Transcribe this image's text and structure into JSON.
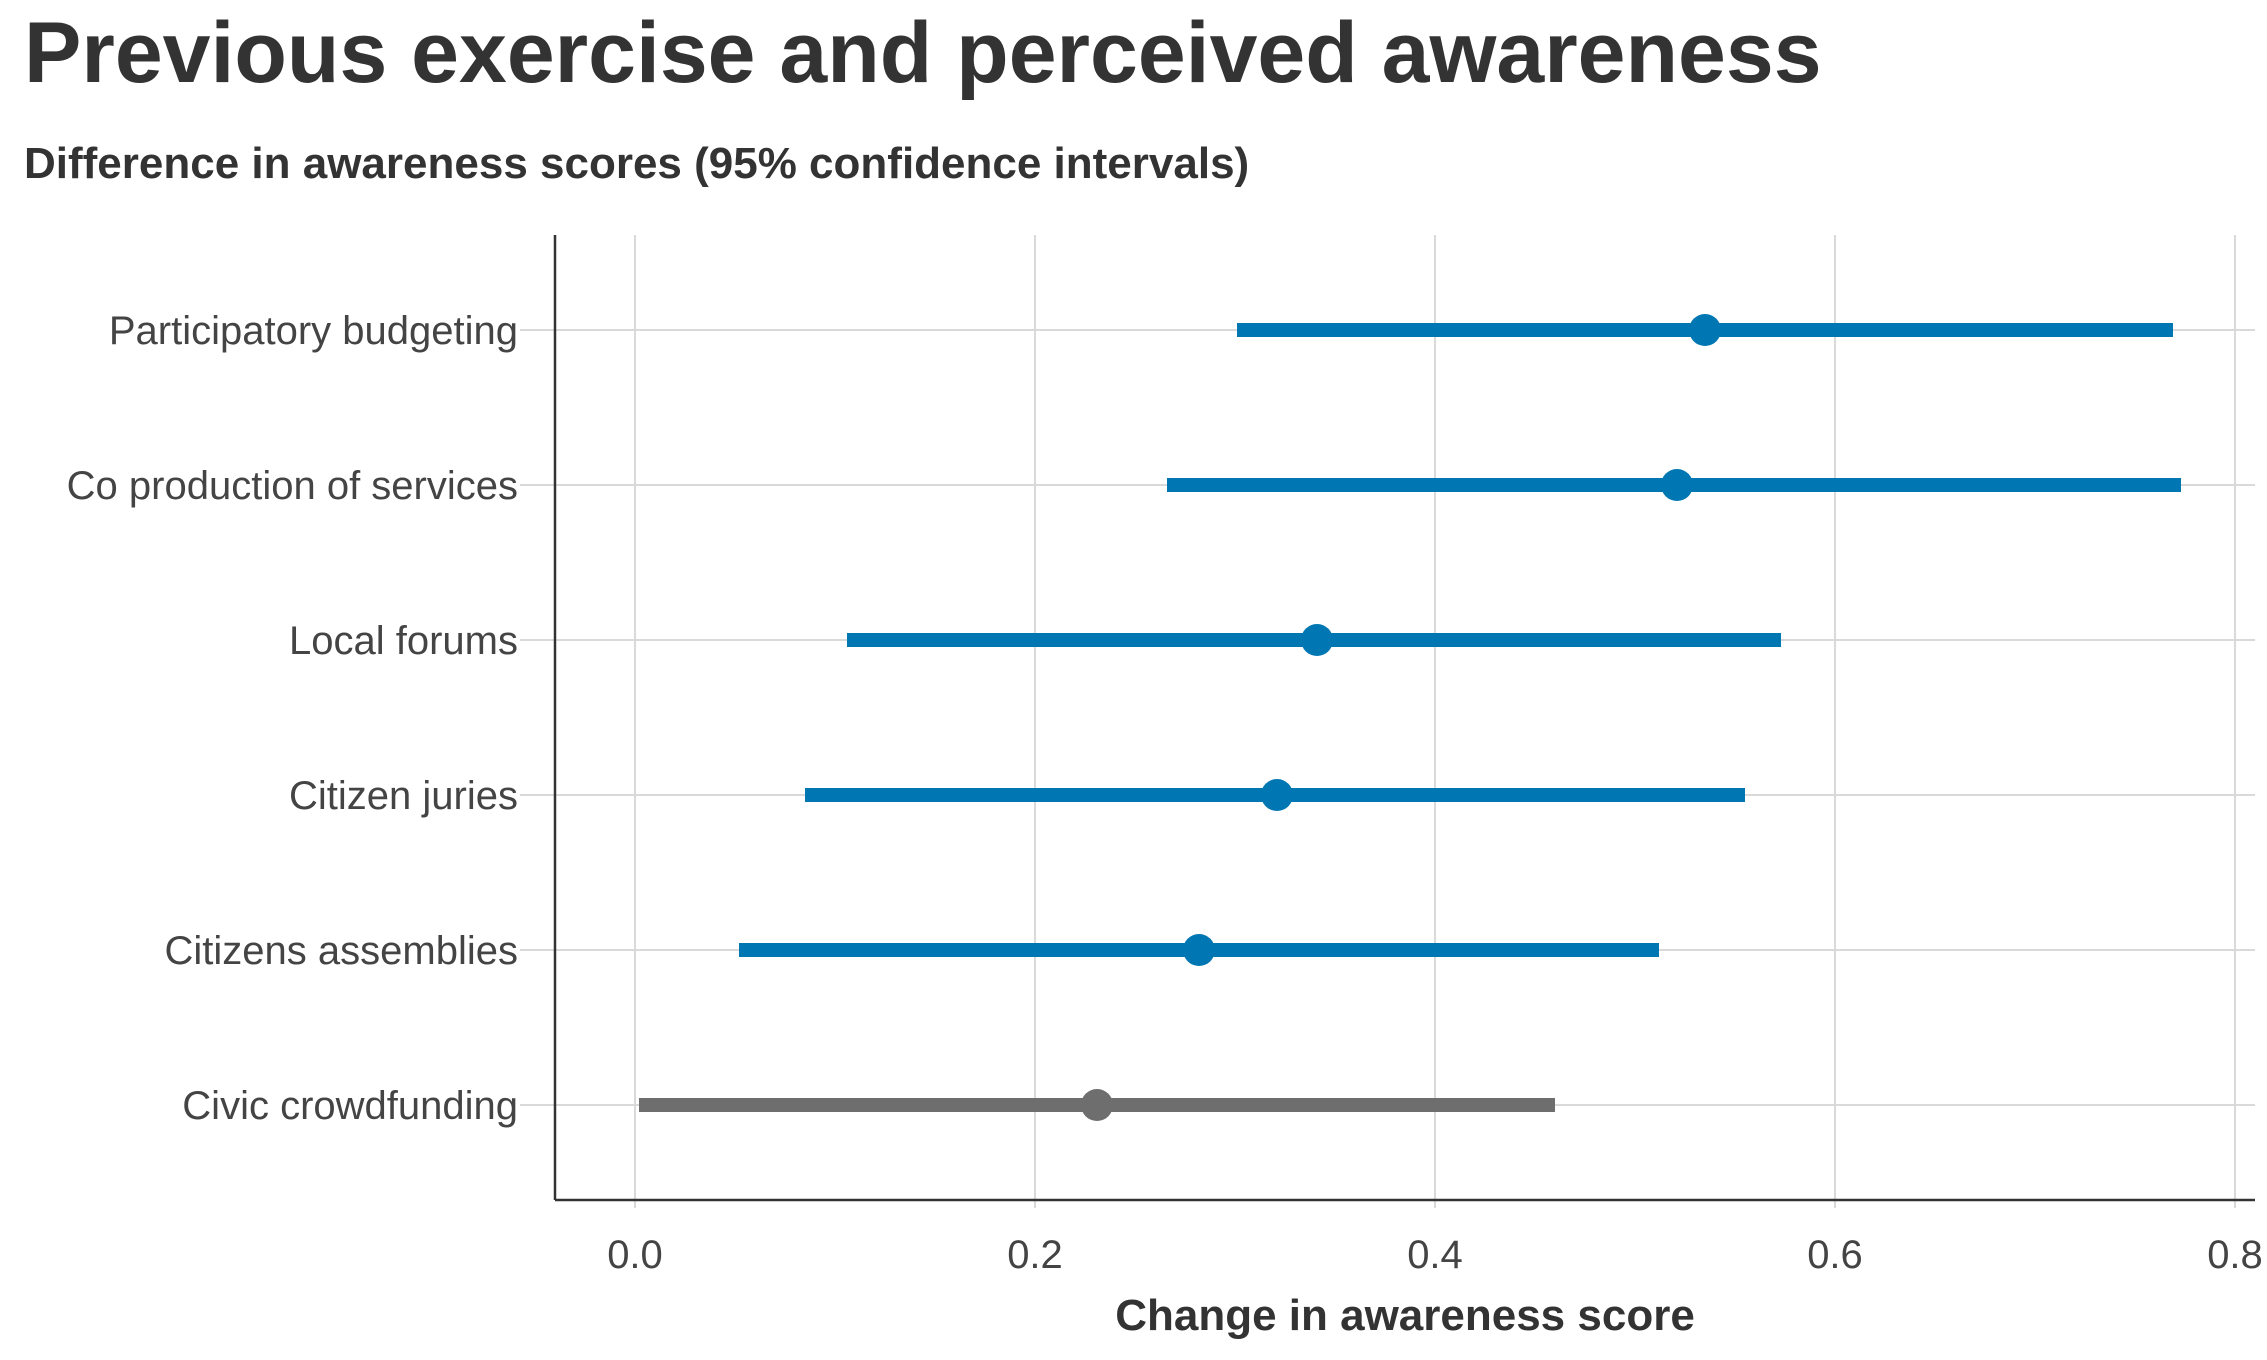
{
  "chart_data": {
    "type": "dot-interval",
    "title": "Previous exercise and perceived awareness",
    "subtitle": "Difference in awareness scores (95% confidence intervals)",
    "xlabel": "Change in awareness score",
    "ylabel": "",
    "xlim": [
      -0.04,
      0.81
    ],
    "xticks": [
      0.0,
      0.2,
      0.4,
      0.6,
      0.8
    ],
    "xtick_labels": [
      "0.0",
      "0.2",
      "0.4",
      "0.6",
      "0.8"
    ],
    "grid": true,
    "colors": {
      "significant": "#0077b3",
      "not_significant": "#6e6e6e",
      "grid": "#d9d9d9",
      "axis": "#333333"
    },
    "categories": [
      "Participatory budgeting",
      "Co production of services",
      "Local forums",
      "Citizen juries",
      "Citizens assemblies",
      "Civic crowdfunding"
    ],
    "points": [
      {
        "category": "Participatory budgeting",
        "estimate": 0.535,
        "lower": 0.301,
        "upper": 0.769,
        "color": "#0077b3"
      },
      {
        "category": "Co production of services",
        "estimate": 0.521,
        "lower": 0.266,
        "upper": 0.773,
        "color": "#0077b3"
      },
      {
        "category": "Local forums",
        "estimate": 0.341,
        "lower": 0.106,
        "upper": 0.573,
        "color": "#0077b3"
      },
      {
        "category": "Citizen juries",
        "estimate": 0.321,
        "lower": 0.085,
        "upper": 0.555,
        "color": "#0077b3"
      },
      {
        "category": "Citizens assemblies",
        "estimate": 0.282,
        "lower": 0.052,
        "upper": 0.512,
        "color": "#0077b3"
      },
      {
        "category": "Civic crowdfunding",
        "estimate": 0.231,
        "lower": 0.002,
        "upper": 0.46,
        "color": "#6e6e6e"
      }
    ]
  }
}
